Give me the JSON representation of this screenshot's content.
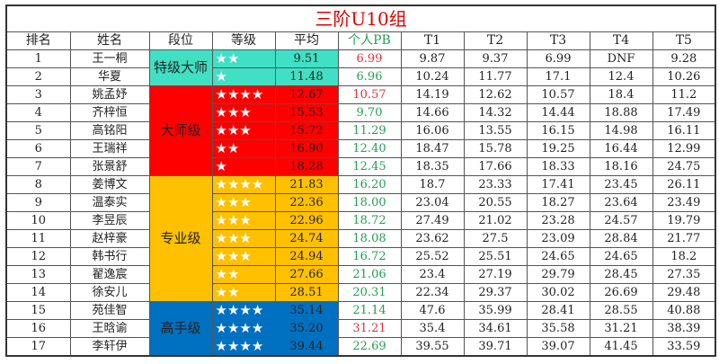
{
  "title": "三阶U10组",
  "headers": [
    "排名",
    "姓名",
    "段位",
    "等级",
    "平均",
    "个人PB",
    "T1",
    "T2",
    "T3",
    "T4",
    "T5"
  ],
  "colors": {
    "特级大师": "#40E0C4",
    "大师级": "#FF0000",
    "专业级": "#FFC000",
    "高手级": "#0070C0",
    "pb_new": "#e0303c",
    "pb_old": "#22a050"
  },
  "tiers": [
    {
      "name": "特级大师",
      "rows": 2
    },
    {
      "name": "大师级",
      "rows": 5
    },
    {
      "name": "专业级",
      "rows": 7
    },
    {
      "name": "高手级",
      "rows": 3
    }
  ],
  "rows": [
    {
      "rank": "1",
      "name": "王一桐",
      "stars": 2,
      "avg": "9.51",
      "pb": "6.99",
      "pb_new": true,
      "t": [
        "9.87",
        "9.37",
        "6.99",
        "DNF",
        "9.28"
      ]
    },
    {
      "rank": "2",
      "name": "华夏",
      "stars": 1,
      "avg": "11.48",
      "pb": "6.96",
      "pb_new": false,
      "t": [
        "10.24",
        "11.77",
        "17.1",
        "12.4",
        "10.26"
      ]
    },
    {
      "rank": "3",
      "name": "姚孟妤",
      "stars": 4,
      "avg": "12.67",
      "pb": "10.57",
      "pb_new": true,
      "t": [
        "14.19",
        "12.62",
        "10.57",
        "18.4",
        "11.2"
      ]
    },
    {
      "rank": "4",
      "name": "齐梓恒",
      "stars": 3,
      "avg": "15.53",
      "pb": "9.70",
      "pb_new": false,
      "t": [
        "14.66",
        "14.32",
        "14.44",
        "18.88",
        "17.49"
      ]
    },
    {
      "rank": "5",
      "name": "高铭阳",
      "stars": 3,
      "avg": "15.72",
      "pb": "11.29",
      "pb_new": false,
      "t": [
        "16.06",
        "13.55",
        "16.15",
        "14.98",
        "16.11"
      ]
    },
    {
      "rank": "6",
      "name": "王瑞祥",
      "stars": 2,
      "avg": "16.90",
      "pb": "12.40",
      "pb_new": false,
      "t": [
        "18.47",
        "15.78",
        "19.25",
        "16.44",
        "12.99"
      ]
    },
    {
      "rank": "7",
      "name": "张景舒",
      "stars": 1,
      "avg": "18.28",
      "pb": "12.45",
      "pb_new": false,
      "t": [
        "18.35",
        "17.66",
        "18.33",
        "18.16",
        "24.75"
      ]
    },
    {
      "rank": "8",
      "name": "姜博文",
      "stars": 4,
      "avg": "21.83",
      "pb": "16.20",
      "pb_new": false,
      "t": [
        "18.7",
        "23.33",
        "17.41",
        "23.45",
        "26.11"
      ]
    },
    {
      "rank": "9",
      "name": "温泰实",
      "stars": 3,
      "avg": "22.36",
      "pb": "18.00",
      "pb_new": false,
      "t": [
        "23.04",
        "20.55",
        "18.27",
        "23.64",
        "23.49"
      ]
    },
    {
      "rank": "10",
      "name": "李昱辰",
      "stars": 3,
      "avg": "22.96",
      "pb": "18.72",
      "pb_new": false,
      "t": [
        "27.49",
        "21.02",
        "23.28",
        "24.57",
        "19.79"
      ]
    },
    {
      "rank": "11",
      "name": "赵梓豪",
      "stars": 3,
      "avg": "24.74",
      "pb": "18.08",
      "pb_new": false,
      "t": [
        "23.62",
        "27.5",
        "23.09",
        "28.84",
        "21.77"
      ]
    },
    {
      "rank": "12",
      "name": "韩书行",
      "stars": 3,
      "avg": "24.94",
      "pb": "16.72",
      "pb_new": false,
      "t": [
        "25.52",
        "25.51",
        "24.65",
        "24.65",
        "18.2"
      ]
    },
    {
      "rank": "13",
      "name": "翟逸宸",
      "stars": 2,
      "avg": "27.66",
      "pb": "21.06",
      "pb_new": false,
      "t": [
        "23.4",
        "27.19",
        "29.79",
        "28.45",
        "27.35"
      ]
    },
    {
      "rank": "14",
      "name": "徐安儿",
      "stars": 2,
      "avg": "28.51",
      "pb": "20.31",
      "pb_new": false,
      "t": [
        "22.34",
        "29.37",
        "30.02",
        "26.69",
        "29.48"
      ]
    },
    {
      "rank": "15",
      "name": "苑佳智",
      "stars": 4,
      "avg": "35.14",
      "pb": "21.14",
      "pb_new": false,
      "t": [
        "47.6",
        "35.99",
        "28.41",
        "28.55",
        "40.88"
      ]
    },
    {
      "rank": "16",
      "name": "王晗谕",
      "stars": 4,
      "avg": "35.20",
      "pb": "31.21",
      "pb_new": true,
      "t": [
        "35.4",
        "34.61",
        "35.58",
        "31.21",
        "38.39"
      ]
    },
    {
      "rank": "17",
      "name": "李轩伊",
      "stars": 4,
      "avg": "39.44",
      "pb": "22.69",
      "pb_new": false,
      "t": [
        "39.55",
        "39.71",
        "39.07",
        "41.45",
        "33.59"
      ]
    }
  ]
}
